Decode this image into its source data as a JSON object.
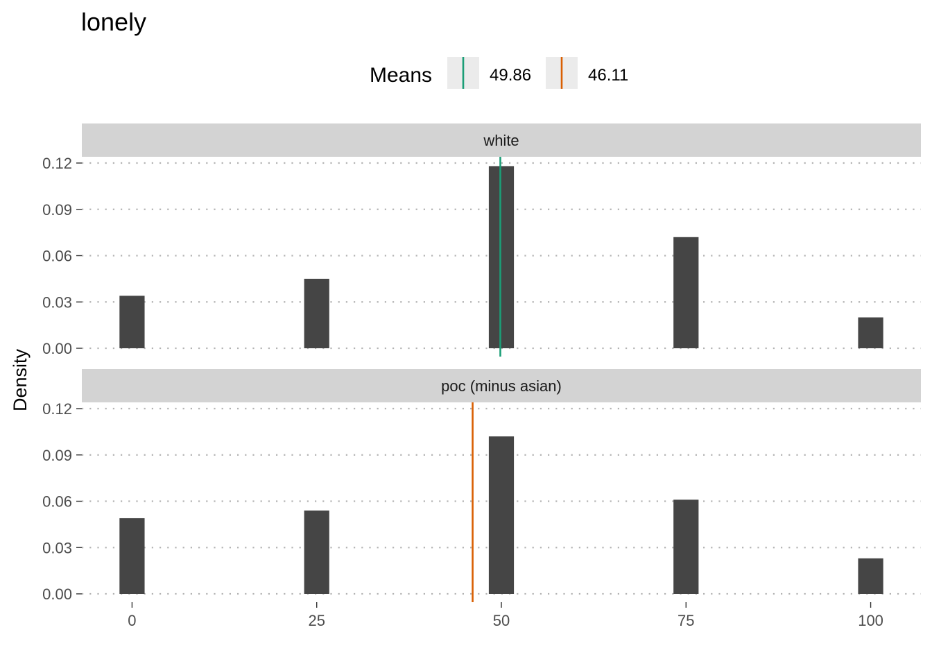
{
  "chart_data": {
    "type": "bar",
    "title": "lonely",
    "xlabel": "",
    "ylabel": "Density",
    "xlim": [
      -6.8,
      106.8
    ],
    "ylim": [
      0,
      0.12
    ],
    "x_ticks": [
      0,
      25,
      50,
      75,
      100
    ],
    "y_ticks": [
      0.0,
      0.03,
      0.06,
      0.09,
      0.12
    ],
    "y_tick_labels": [
      "0.00",
      "0.03",
      "0.06",
      "0.09",
      "0.12"
    ],
    "grid": "horizontal dotted",
    "legend": {
      "title": "Means",
      "position": "top",
      "entries": [
        {
          "label": "49.86",
          "value": 49.86,
          "color": "#1b9e77"
        },
        {
          "label": "46.11",
          "value": 46.11,
          "color": "#d95f02"
        }
      ]
    },
    "bar_color": "#454545",
    "bar_width": 3.4,
    "panels": [
      {
        "strip": "white",
        "x": [
          0,
          25,
          50,
          75,
          100
        ],
        "values": [
          0.034,
          0.045,
          0.118,
          0.072,
          0.02
        ],
        "mean": 49.86,
        "mean_color": "#1b9e77"
      },
      {
        "strip": "poc (minus asian)",
        "x": [
          0,
          25,
          50,
          75,
          100
        ],
        "values": [
          0.049,
          0.054,
          0.102,
          0.061,
          0.023
        ],
        "mean": 46.11,
        "mean_color": "#d95f02"
      }
    ]
  }
}
